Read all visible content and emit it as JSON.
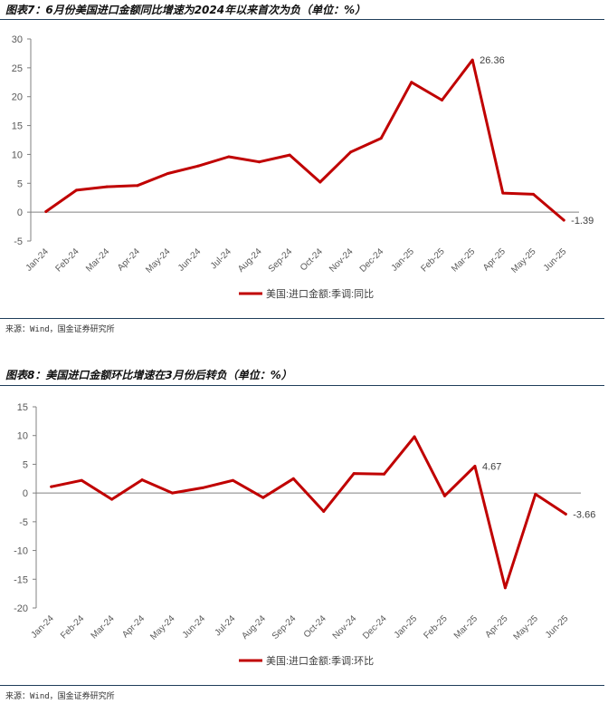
{
  "colors": {
    "line": "#c00000",
    "axis": "#808080",
    "text": "#595959",
    "rule": "#1f3d5a"
  },
  "fig7": {
    "title": "图表7：6月份美国进口金额同比增速为2024年以来首次为负（单位：%）",
    "source": "来源：Wind，国金证券研究所",
    "chart_data": {
      "type": "line",
      "categories": [
        "Jan-24",
        "Feb-24",
        "Mar-24",
        "Apr-24",
        "May-24",
        "Jun-24",
        "Jul-24",
        "Aug-24",
        "Sep-24",
        "Oct-24",
        "Nov-24",
        "Dec-24",
        "Jan-25",
        "Feb-25",
        "Mar-25",
        "Apr-25",
        "May-25",
        "Jun-25"
      ],
      "series": [
        {
          "name": "美国:进口金额:季调:同比",
          "values": [
            0.1,
            3.8,
            4.4,
            4.6,
            6.7,
            8.0,
            9.6,
            8.7,
            9.9,
            5.2,
            10.4,
            12.8,
            22.5,
            19.4,
            26.36,
            3.3,
            3.1,
            -1.39
          ]
        }
      ],
      "ylim": [
        -5,
        30
      ],
      "yticks": [
        "-5",
        "0",
        "5",
        "10",
        "15",
        "20",
        "25",
        "30"
      ],
      "annotations": [
        {
          "index": 14,
          "text": "26.36"
        },
        {
          "index": 17,
          "text": "-1.39"
        }
      ],
      "legend_position": "bottom"
    }
  },
  "fig8": {
    "title": "图表8：美国进口金额环比增速在3月份后转负（单位：%）",
    "source": "来源：Wind，国金证券研究所",
    "chart_data": {
      "type": "line",
      "categories": [
        "Jan-24",
        "Feb-24",
        "Mar-24",
        "Apr-24",
        "May-24",
        "Jun-24",
        "Jul-24",
        "Aug-24",
        "Sep-24",
        "Oct-24",
        "Nov-24",
        "Dec-24",
        "Jan-25",
        "Feb-25",
        "Mar-25",
        "Apr-25",
        "May-25",
        "Jun-25"
      ],
      "series": [
        {
          "name": "美国:进口金额:季调:环比",
          "values": [
            1.1,
            2.2,
            -1.1,
            2.3,
            0.0,
            0.9,
            2.2,
            -0.8,
            2.5,
            -3.2,
            3.4,
            3.3,
            9.8,
            -0.5,
            4.67,
            -16.5,
            -0.2,
            -3.66
          ]
        }
      ],
      "ylim": [
        -20,
        15
      ],
      "yticks": [
        "-20",
        "-15",
        "-10",
        "-5",
        "0",
        "5",
        "10",
        "15"
      ],
      "annotations": [
        {
          "index": 14,
          "text": "4.67"
        },
        {
          "index": 17,
          "text": "-3.66"
        }
      ],
      "legend_position": "bottom"
    }
  }
}
